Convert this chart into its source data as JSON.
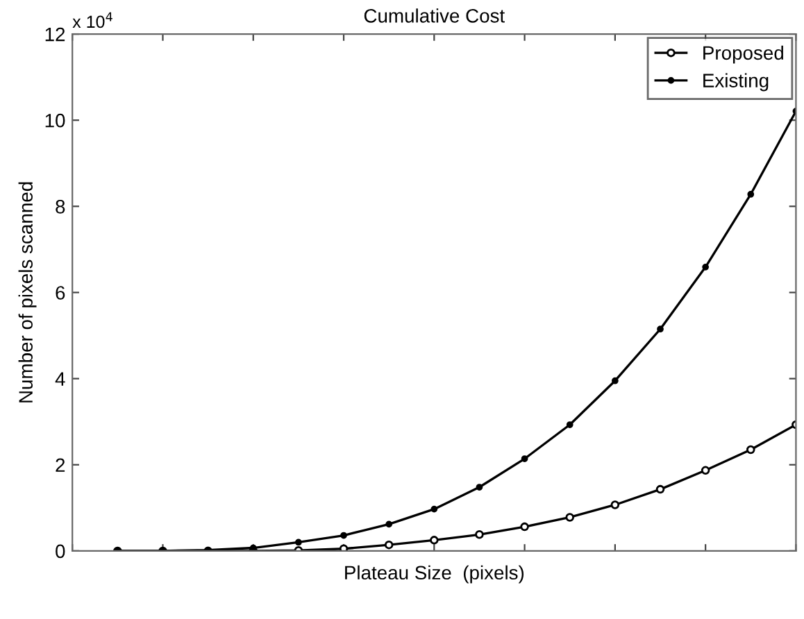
{
  "chart_data": {
    "type": "line",
    "title": "Cumulative Cost",
    "xlabel": "Plateau Size  (pixels)",
    "ylabel": "Number of pixels scanned",
    "annotations": [
      "x 10$^{4}$"
    ],
    "categories": [
      null,
      null,
      null,
      null,
      null,
      null,
      null,
      null,
      null,
      null,
      null,
      null,
      null,
      null,
      null,
      null
    ],
    "ylim": [
      0,
      12
    ],
    "yticks": [
      0,
      2,
      4,
      6,
      8,
      10,
      12
    ],
    "tick_labels": "y",
    "legend": "top right",
    "marker": "circle",
    "line_style": "solid",
    "grid": false,
    "series": [
      {
        "name": "Proposed",
        "color": "#000000",
        "values": [
          0,
          0,
          0,
          0,
          0.01,
          0.05,
          0.14,
          0.25,
          0.38,
          0.56,
          0.78,
          1.07,
          1.43,
          1.87,
          2.35,
          2.93
        ]
      },
      {
        "name": "Existing",
        "color": "#000000",
        "values": [
          0,
          0,
          0.02,
          0.07,
          0.2,
          0.36,
          0.62,
          0.97,
          1.48,
          2.14,
          2.93,
          3.95,
          5.15,
          6.59,
          8.28,
          10.21
        ]
      }
    ]
  }
}
